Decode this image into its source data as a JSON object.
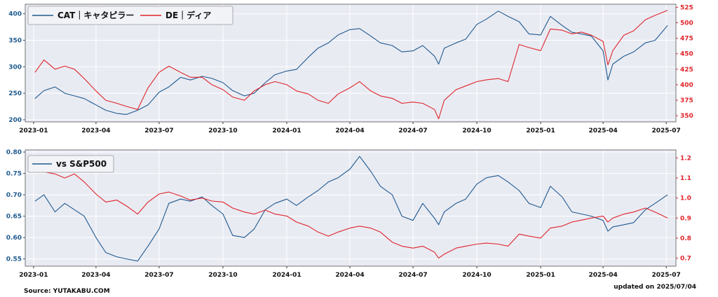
{
  "footer": {
    "source": "Source: YUTAKABU.COM",
    "updated": "updated on 2025/07/04"
  },
  "colors": {
    "cat": "#1f5a8f",
    "de": "#e0242a",
    "panel_bg": "#e9ebf3",
    "grid": "#ffffff"
  },
  "chart_data": [
    {
      "type": "line",
      "title": "",
      "legend_position": "top-left",
      "grid": true,
      "x_ticks": [
        "2023-01",
        "2023-04",
        "2023-07",
        "2023-10",
        "2024-01",
        "2024-04",
        "2024-07",
        "2024-10",
        "2025-01",
        "2025-04",
        "2025-07"
      ],
      "xlim": [
        "2022-12-20",
        "2025-07-15"
      ],
      "y_left": {
        "ticks": [
          200,
          250,
          300,
          350,
          400
        ],
        "ylim": [
          196,
          418
        ]
      },
      "y_right": {
        "ticks": [
          350,
          375,
          400,
          425,
          450,
          475,
          500,
          525
        ],
        "ylim": [
          340,
          530
        ]
      },
      "series": [
        {
          "name": "CAT｜キャタピラー",
          "axis": "left",
          "color_key": "cat",
          "x": [
            "2023-01-03",
            "2023-01-16",
            "2023-02-01",
            "2023-02-15",
            "2023-03-01",
            "2023-03-15",
            "2023-04-01",
            "2023-04-15",
            "2023-05-01",
            "2023-05-15",
            "2023-05-31",
            "2023-06-15",
            "2023-07-01",
            "2023-07-15",
            "2023-08-01",
            "2023-08-15",
            "2023-09-01",
            "2023-09-15",
            "2023-10-01",
            "2023-10-15",
            "2023-11-01",
            "2023-11-15",
            "2023-12-01",
            "2023-12-15",
            "2024-01-01",
            "2024-01-15",
            "2024-02-01",
            "2024-02-15",
            "2024-03-01",
            "2024-03-15",
            "2024-04-01",
            "2024-04-15",
            "2024-05-01",
            "2024-05-15",
            "2024-06-01",
            "2024-06-15",
            "2024-07-01",
            "2024-07-15",
            "2024-08-01",
            "2024-08-07",
            "2024-08-15",
            "2024-09-01",
            "2024-09-15",
            "2024-10-01",
            "2024-10-15",
            "2024-11-01",
            "2024-11-15",
            "2024-12-01",
            "2024-12-15",
            "2025-01-01",
            "2025-01-15",
            "2025-02-01",
            "2025-02-15",
            "2025-03-01",
            "2025-03-15",
            "2025-04-01",
            "2025-04-08",
            "2025-04-15",
            "2025-05-01",
            "2025-05-15",
            "2025-06-01",
            "2025-06-15",
            "2025-07-03"
          ],
          "values": [
            240,
            255,
            262,
            250,
            245,
            240,
            228,
            218,
            212,
            210,
            218,
            228,
            252,
            262,
            280,
            275,
            282,
            278,
            270,
            255,
            245,
            250,
            270,
            285,
            292,
            295,
            318,
            335,
            345,
            360,
            370,
            372,
            358,
            345,
            340,
            328,
            330,
            340,
            320,
            305,
            335,
            345,
            352,
            380,
            390,
            405,
            395,
            385,
            362,
            360,
            395,
            378,
            365,
            362,
            358,
            330,
            275,
            305,
            320,
            328,
            345,
            350,
            378
          ]
        },
        {
          "name": "DE｜ディア",
          "axis": "right",
          "color_key": "de",
          "x": [
            "2023-01-03",
            "2023-01-16",
            "2023-02-01",
            "2023-02-15",
            "2023-03-01",
            "2023-03-15",
            "2023-04-01",
            "2023-04-15",
            "2023-05-01",
            "2023-05-15",
            "2023-05-31",
            "2023-06-15",
            "2023-07-01",
            "2023-07-15",
            "2023-08-01",
            "2023-08-15",
            "2023-09-01",
            "2023-09-15",
            "2023-10-01",
            "2023-10-15",
            "2023-11-01",
            "2023-11-15",
            "2023-12-01",
            "2023-12-15",
            "2024-01-01",
            "2024-01-15",
            "2024-02-01",
            "2024-02-15",
            "2024-03-01",
            "2024-03-15",
            "2024-04-01",
            "2024-04-15",
            "2024-05-01",
            "2024-05-15",
            "2024-06-01",
            "2024-06-15",
            "2024-07-01",
            "2024-07-15",
            "2024-08-01",
            "2024-08-07",
            "2024-08-15",
            "2024-09-01",
            "2024-09-15",
            "2024-10-01",
            "2024-10-15",
            "2024-11-01",
            "2024-11-15",
            "2024-12-01",
            "2024-12-15",
            "2025-01-01",
            "2025-01-15",
            "2025-02-01",
            "2025-02-15",
            "2025-03-01",
            "2025-03-15",
            "2025-04-01",
            "2025-04-08",
            "2025-04-15",
            "2025-05-01",
            "2025-05-15",
            "2025-06-01",
            "2025-06-15",
            "2025-07-03"
          ],
          "values": [
            420,
            440,
            425,
            430,
            425,
            410,
            390,
            375,
            370,
            365,
            360,
            395,
            420,
            430,
            420,
            412,
            412,
            400,
            392,
            380,
            375,
            390,
            400,
            405,
            400,
            390,
            385,
            375,
            370,
            385,
            395,
            405,
            390,
            382,
            378,
            370,
            372,
            370,
            360,
            345,
            375,
            392,
            398,
            405,
            408,
            410,
            405,
            465,
            460,
            455,
            490,
            488,
            482,
            485,
            480,
            470,
            432,
            455,
            480,
            487,
            505,
            512,
            520
          ]
        }
      ]
    },
    {
      "type": "line",
      "title": "",
      "legend_position": "top-left",
      "grid": true,
      "x_ticks": [
        "2023-01",
        "2023-04",
        "2023-07",
        "2023-10",
        "2024-01",
        "2024-04",
        "2024-07",
        "2024-10",
        "2025-01",
        "2025-04",
        "2025-07"
      ],
      "xlim": [
        "2022-12-20",
        "2025-07-15"
      ],
      "y_left": {
        "ticks": [
          0.55,
          0.6,
          0.65,
          0.7,
          0.75,
          0.8
        ],
        "ylim": [
          0.533,
          0.805
        ]
      },
      "y_right": {
        "ticks": [
          0.7,
          0.8,
          0.9,
          1.0,
          1.1,
          1.2
        ],
        "ylim": [
          0.66,
          1.24
        ]
      },
      "series": [
        {
          "name": "vs S&P500",
          "axis": "left",
          "color_key": "cat",
          "x": [
            "2023-01-03",
            "2023-01-16",
            "2023-02-01",
            "2023-02-15",
            "2023-03-01",
            "2023-03-15",
            "2023-04-01",
            "2023-04-15",
            "2023-05-01",
            "2023-05-15",
            "2023-05-31",
            "2023-06-15",
            "2023-07-01",
            "2023-07-15",
            "2023-08-01",
            "2023-08-15",
            "2023-09-01",
            "2023-09-15",
            "2023-10-01",
            "2023-10-15",
            "2023-11-01",
            "2023-11-15",
            "2023-12-01",
            "2023-12-15",
            "2024-01-01",
            "2024-01-15",
            "2024-02-01",
            "2024-02-15",
            "2024-03-01",
            "2024-03-15",
            "2024-04-01",
            "2024-04-15",
            "2024-05-01",
            "2024-05-15",
            "2024-06-01",
            "2024-06-15",
            "2024-07-01",
            "2024-07-15",
            "2024-08-01",
            "2024-08-07",
            "2024-08-15",
            "2024-09-01",
            "2024-09-15",
            "2024-10-01",
            "2024-10-15",
            "2024-11-01",
            "2024-11-15",
            "2024-12-01",
            "2024-12-15",
            "2025-01-01",
            "2025-01-15",
            "2025-02-01",
            "2025-02-15",
            "2025-03-01",
            "2025-03-15",
            "2025-04-01",
            "2025-04-08",
            "2025-04-15",
            "2025-05-01",
            "2025-05-15",
            "2025-06-01",
            "2025-06-15",
            "2025-07-03"
          ],
          "values": [
            0.685,
            0.7,
            0.66,
            0.68,
            0.665,
            0.65,
            0.6,
            0.565,
            0.555,
            0.55,
            0.545,
            0.58,
            0.62,
            0.68,
            0.69,
            0.685,
            0.695,
            0.675,
            0.655,
            0.605,
            0.6,
            0.62,
            0.665,
            0.68,
            0.69,
            0.675,
            0.695,
            0.71,
            0.73,
            0.74,
            0.76,
            0.79,
            0.755,
            0.72,
            0.7,
            0.65,
            0.64,
            0.68,
            0.645,
            0.63,
            0.66,
            0.68,
            0.69,
            0.725,
            0.74,
            0.745,
            0.73,
            0.71,
            0.68,
            0.67,
            0.72,
            0.695,
            0.66,
            0.655,
            0.65,
            0.64,
            0.615,
            0.625,
            0.63,
            0.635,
            0.665,
            0.68,
            0.7
          ]
        },
        {
          "name": "",
          "axis": "right",
          "color_key": "de",
          "x": [
            "2023-01-03",
            "2023-01-16",
            "2023-02-01",
            "2023-02-15",
            "2023-03-01",
            "2023-03-15",
            "2023-04-01",
            "2023-04-15",
            "2023-05-01",
            "2023-05-15",
            "2023-05-31",
            "2023-06-15",
            "2023-07-01",
            "2023-07-15",
            "2023-08-01",
            "2023-08-15",
            "2023-09-01",
            "2023-09-15",
            "2023-10-01",
            "2023-10-15",
            "2023-11-01",
            "2023-11-15",
            "2023-12-01",
            "2023-12-15",
            "2024-01-01",
            "2024-01-15",
            "2024-02-01",
            "2024-02-15",
            "2024-03-01",
            "2024-03-15",
            "2024-04-01",
            "2024-04-15",
            "2024-05-01",
            "2024-05-15",
            "2024-06-01",
            "2024-06-15",
            "2024-07-01",
            "2024-07-15",
            "2024-08-01",
            "2024-08-07",
            "2024-08-15",
            "2024-09-01",
            "2024-09-15",
            "2024-10-01",
            "2024-10-15",
            "2024-11-01",
            "2024-11-15",
            "2024-12-01",
            "2024-12-15",
            "2025-01-01",
            "2025-01-15",
            "2025-02-01",
            "2025-02-15",
            "2025-03-01",
            "2025-03-15",
            "2025-04-01",
            "2025-04-08",
            "2025-04-15",
            "2025-05-01",
            "2025-05-15",
            "2025-06-01",
            "2025-06-15",
            "2025-07-03"
          ],
          "values": [
            1.15,
            1.13,
            1.12,
            1.1,
            1.12,
            1.08,
            1.02,
            0.98,
            0.99,
            0.96,
            0.92,
            0.98,
            1.02,
            1.03,
            1.01,
            0.99,
            1.0,
            0.985,
            0.98,
            0.95,
            0.93,
            0.92,
            0.94,
            0.92,
            0.91,
            0.88,
            0.86,
            0.83,
            0.81,
            0.83,
            0.85,
            0.86,
            0.85,
            0.83,
            0.78,
            0.76,
            0.75,
            0.76,
            0.73,
            0.7,
            0.72,
            0.75,
            0.76,
            0.77,
            0.775,
            0.77,
            0.76,
            0.82,
            0.81,
            0.8,
            0.85,
            0.86,
            0.88,
            0.89,
            0.9,
            0.91,
            0.88,
            0.9,
            0.92,
            0.93,
            0.95,
            0.93,
            0.9
          ]
        }
      ]
    }
  ]
}
